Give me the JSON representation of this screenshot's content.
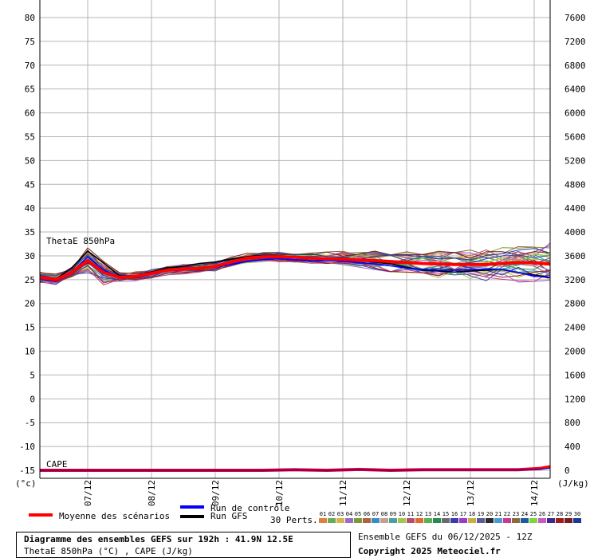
{
  "chart_data": {
    "type": "line",
    "title": "Diagramme des ensembles GEFS sur 192h : 41.9N 12.5E",
    "subtitle": "ThetaE 850hPa (°C) , CAPE (J/kg)",
    "left_axis_unit": "(°c)",
    "right_axis_unit": "(J/kg)",
    "left_ylim": [
      -15,
      82
    ],
    "right_ylim": [
      0,
      7760
    ],
    "left_ticks": [
      80,
      75,
      70,
      65,
      60,
      55,
      50,
      45,
      40,
      35,
      30,
      25,
      20,
      15,
      10,
      5,
      0,
      -5,
      -10,
      -15
    ],
    "right_ticks": [
      7600,
      7200,
      6800,
      6400,
      6000,
      5600,
      5200,
      4800,
      4400,
      4000,
      3600,
      3200,
      2800,
      2400,
      2000,
      1600,
      1200,
      800,
      400,
      0
    ],
    "x_ticks": [
      "07/12",
      "08/12",
      "09/12",
      "10/12",
      "11/12",
      "12/12",
      "13/12",
      "14/12"
    ],
    "x_tick_hours": [
      18,
      42,
      66,
      90,
      114,
      138,
      162,
      186
    ],
    "x_range_hours": [
      0,
      192
    ],
    "grid": true,
    "labels": {
      "thetae": "ThetaE 850hPa",
      "cape": "CAPE"
    },
    "series": [
      {
        "name": "Moyenne des scénarios",
        "color": "#ff0000",
        "hours": [
          0,
          6,
          12,
          18,
          24,
          30,
          36,
          42,
          48,
          54,
          60,
          66,
          72,
          78,
          84,
          90,
          96,
          102,
          108,
          114,
          120,
          126,
          132,
          138,
          144,
          150,
          156,
          162,
          168,
          174,
          180,
          186,
          192
        ],
        "values": [
          25.5,
          25,
          26.5,
          29,
          26.5,
          25.5,
          25.7,
          26.3,
          27,
          27.2,
          27.4,
          27.8,
          28.7,
          29.5,
          29.8,
          29.8,
          29.7,
          29.5,
          29.4,
          29.3,
          29.1,
          29,
          28.8,
          28.6,
          28.4,
          28.3,
          28.2,
          28.2,
          28.2,
          28.4,
          28.6,
          28.5,
          28.3
        ]
      },
      {
        "name": "Run de contrôle",
        "color": "#0000ff",
        "hours": [
          0,
          6,
          12,
          18,
          24,
          30,
          36,
          42,
          48,
          54,
          60,
          66,
          72,
          78,
          84,
          90,
          96,
          102,
          108,
          114,
          120,
          126,
          132,
          138,
          144,
          150,
          156,
          162,
          168,
          174,
          180,
          186,
          192
        ],
        "values": [
          25.2,
          24.7,
          26.5,
          29.8,
          27,
          25.6,
          25.8,
          26.5,
          27.1,
          27.1,
          27.3,
          27.6,
          28.2,
          28.8,
          29.2,
          29.4,
          29.2,
          29,
          28.9,
          28.9,
          28.6,
          28.3,
          27.9,
          27.4,
          27.1,
          27,
          27,
          27.1,
          27.2,
          27.1,
          26.5,
          25.8,
          25.4
        ]
      },
      {
        "name": "Run GFS",
        "color": "#000000",
        "hours": [
          0,
          6,
          12,
          18,
          24,
          30,
          36,
          42,
          48,
          54,
          60,
          66,
          72,
          78,
          84,
          90,
          96,
          102,
          108,
          114,
          120,
          126,
          132,
          138,
          144,
          150,
          156,
          162,
          168,
          174,
          180,
          186,
          192
        ],
        "values": [
          25.5,
          25.1,
          27.5,
          31,
          28.5,
          25.8,
          25.8,
          26.6,
          27.5,
          27.8,
          28.4,
          28.7,
          29.3,
          29.8,
          30.1,
          30,
          29.8,
          29.5,
          29.4,
          29.2,
          29,
          28.7,
          28.3,
          27.6,
          27,
          26.8,
          26.6,
          26.8,
          27,
          27.1,
          26.5,
          26,
          25.5
        ]
      }
    ],
    "cape_mean": {
      "hours": [
        0,
        12,
        24,
        36,
        48,
        60,
        72,
        84,
        96,
        108,
        120,
        132,
        144,
        156,
        168,
        180,
        188,
        192
      ],
      "values": [
        0,
        0,
        0,
        0,
        0,
        0,
        0,
        0,
        10,
        0,
        15,
        0,
        10,
        10,
        10,
        10,
        30,
        60
      ]
    },
    "ensemble": {
      "label": "30 Perts.",
      "members": [
        "01",
        "02",
        "03",
        "04",
        "05",
        "06",
        "07",
        "08",
        "09",
        "10",
        "11",
        "12",
        "13",
        "14",
        "15",
        "16",
        "17",
        "18",
        "19",
        "20",
        "21",
        "22",
        "23",
        "24",
        "25",
        "26",
        "27",
        "28",
        "29",
        "30"
      ],
      "colors": [
        "#e0803a",
        "#6aaa5a",
        "#d8b24a",
        "#9a6ac8",
        "#7a9a3a",
        "#b0603a",
        "#3a8ac8",
        "#c8a08a",
        "#4aa0a0",
        "#a0c84a",
        "#b05070",
        "#e06a2a",
        "#5ab05a",
        "#2a8a4a",
        "#6a6a6a",
        "#3a3ab0",
        "#9a3ac8",
        "#c8b03a",
        "#5a5a9a",
        "#2a2a2a",
        "#4a9ad8",
        "#c83a8a",
        "#8a6a3a",
        "#1a5aa0",
        "#7ad83a",
        "#c85ac8",
        "#3a2a8a",
        "#a01a1a",
        "#7a1a1a",
        "#1a3a9a"
      ]
    }
  },
  "legend": {
    "mean_label": "Moyenne des scénarios",
    "control_label": "Run de contrôle",
    "gfs_label": "Run GFS"
  },
  "footer": {
    "run_info": "Ensemble GEFS du 06/12/2025 - 12Z",
    "copyright": "Copyright 2025 Meteociel.fr"
  },
  "colors": {
    "mean": "#ff0000",
    "control": "#0000ff",
    "gfs": "#000000",
    "grid": "#b4b4b4"
  }
}
